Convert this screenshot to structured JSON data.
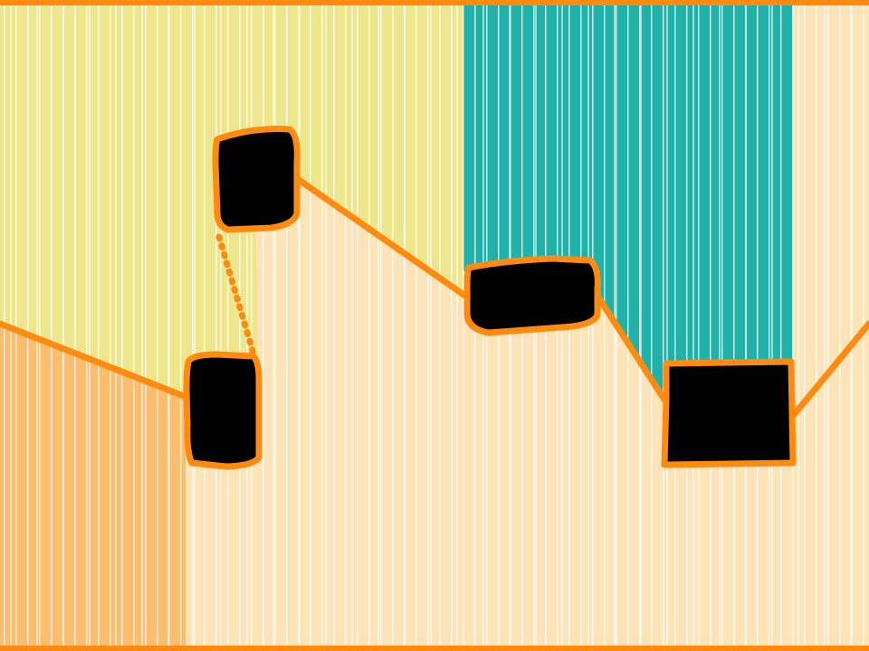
{
  "palette": {
    "sand": "#fde3b8",
    "yellow": "#ede68c",
    "teal": "#20b2a8",
    "apricot": "#fdbd6f",
    "orange": "#fe8a10",
    "black": "#000000",
    "stripe": "#ffffff"
  },
  "scene": {
    "regions": [
      "yellow-region",
      "teal-region",
      "apricot-region",
      "sand-background"
    ],
    "nodes": [
      "node-a",
      "node-b",
      "node-c",
      "node-d"
    ],
    "links": [
      "link-left-edge-to-a",
      "link-a-to-b-dotted",
      "link-b-to-c",
      "link-c-to-d",
      "link-d-to-right-edge"
    ],
    "hatching": "vertical-white-stripes"
  }
}
